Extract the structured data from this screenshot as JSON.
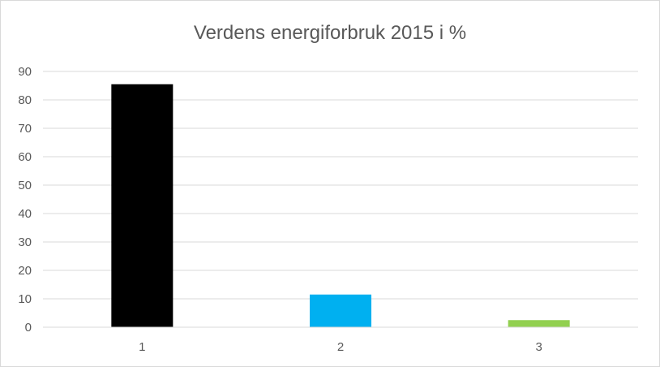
{
  "chart_data": {
    "type": "bar",
    "title": "Verdens energiforbruk 2015 i %",
    "categories": [
      "1",
      "2",
      "3"
    ],
    "values": [
      85.5,
      11.5,
      2.5
    ],
    "bar_colors": [
      "#000000",
      "#00b0f0",
      "#92d050"
    ],
    "ylim": [
      0,
      90
    ],
    "yticks": [
      "0",
      "10",
      "20",
      "30",
      "40",
      "50",
      "60",
      "70",
      "80",
      "90"
    ],
    "grid": true,
    "legend": "none",
    "xlabel": "",
    "ylabel": ""
  }
}
